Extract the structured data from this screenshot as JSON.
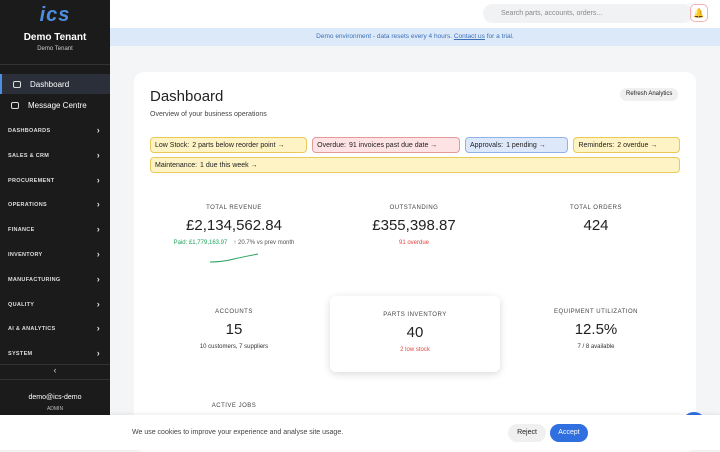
{
  "sidebar": {
    "logo": "ics",
    "tenant_name": "Demo Tenant",
    "tenant_subtitle": "Demo Tenant",
    "nav": [
      "Dashboard",
      "Message Centre"
    ],
    "sections": [
      "DASHBOARDS",
      "SALES & CRM",
      "PROCUREMENT",
      "OPERATIONS",
      "FINANCE",
      "INVENTORY",
      "MANUFACTURING",
      "QUALITY",
      "AI & ANALYTICS",
      "SYSTEM"
    ],
    "user_email": "demo@ics-demo",
    "user_role": "ADMIN"
  },
  "topbar": {
    "search_placeholder": "Search parts, accounts, orders..."
  },
  "banner": {
    "text": "Demo environment - data resets every 4 hours.",
    "link": "Contact us",
    "suffix": "for a trial."
  },
  "dashboard": {
    "title": "Dashboard",
    "subtitle": "Overview of your business operations",
    "refresh_button": "Refresh Analytics",
    "alerts": [
      {
        "label": "Low Stock:",
        "text": "2 parts below reorder point →",
        "color": "#fdf3c4",
        "border": "#e8c95a"
      },
      {
        "label": "Overdue:",
        "text": "91 invoices past due date →",
        "color": "#fde3e3",
        "border": "#e59a9a"
      },
      {
        "label": "Approvals:",
        "text": "1 pending →",
        "color": "#dde9fb",
        "border": "#8fb3e8"
      },
      {
        "label": "Reminders:",
        "text": "2 overdue →",
        "color": "#fdf3c4",
        "border": "#e8c95a"
      },
      {
        "label": "Maintenance:",
        "text": "1 due this week →",
        "color": "#fdf3c4",
        "border": "#e8c95a"
      }
    ],
    "cards": [
      {
        "label": "TOTAL REVENUE",
        "value": "£2,134,562.84",
        "details": [
          {
            "text": "Paid: £1,779,163.97",
            "color": "#22a05a"
          },
          {
            "text": "↑ 20.7% vs prev month",
            "color": "#555"
          }
        ]
      },
      {
        "label": "OUTSTANDING",
        "value": "£355,398.87",
        "details": [
          {
            "text": "91 overdue",
            "color": "#e0483e"
          }
        ]
      },
      {
        "label": "TOTAL ORDERS",
        "value": "424",
        "details": []
      },
      {
        "label": "ACCOUNTS",
        "value": "15",
        "details": [
          {
            "text": "10 customers, 7 suppliers",
            "color": "#333"
          }
        ]
      },
      {
        "label": "PARTS INVENTORY",
        "value": "40",
        "details": [
          {
            "text": "2 low stock",
            "color": "#e0483e"
          }
        ]
      },
      {
        "label": "EQUIPMENT UTILIZATION",
        "value": "12.5%",
        "details": [
          {
            "text": "7 / 8 available",
            "color": "#333"
          }
        ]
      }
    ],
    "next_section": "ACTIVE JOBS"
  },
  "cookie": {
    "text": "We use cookies to improve your experience and analyse site usage.",
    "reject": "Reject",
    "accept": "Accept"
  }
}
